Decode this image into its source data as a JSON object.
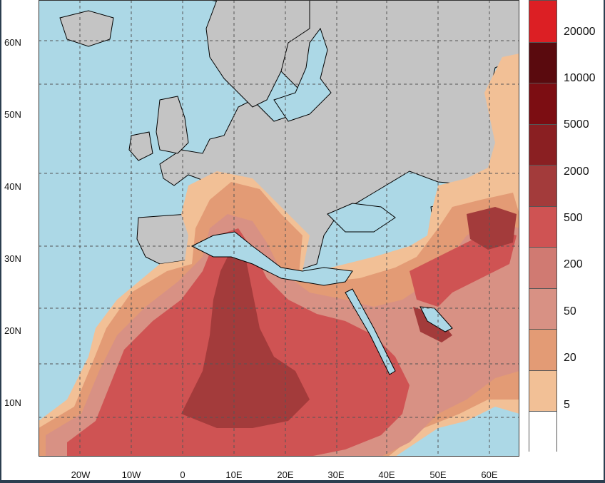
{
  "map": {
    "lat_labels": [
      "60N",
      "50N",
      "40N",
      "30N",
      "20N",
      "10N"
    ],
    "lon_labels": [
      "20W",
      "10W",
      "0",
      "10E",
      "20E",
      "30E",
      "40E",
      "50E",
      "60E"
    ],
    "colors": {
      "ocean": "#acd8e6",
      "land_no_data": "#c4c4c4",
      "coastline": "#000000",
      "border": "#333333",
      "gridline": "#555555"
    }
  },
  "colorbar": {
    "labels": [
      "20000",
      "10000",
      "5000",
      "2000",
      "500",
      "200",
      "50",
      "20",
      "5"
    ],
    "colors": [
      "#dc1f24",
      "#5a0a0e",
      "#7c0d12",
      "#8a1f22",
      "#a33b3b",
      "#cf5353",
      "#d07a72",
      "#d89184",
      "#e39b75",
      "#f2c096",
      "#ffffff"
    ]
  }
}
